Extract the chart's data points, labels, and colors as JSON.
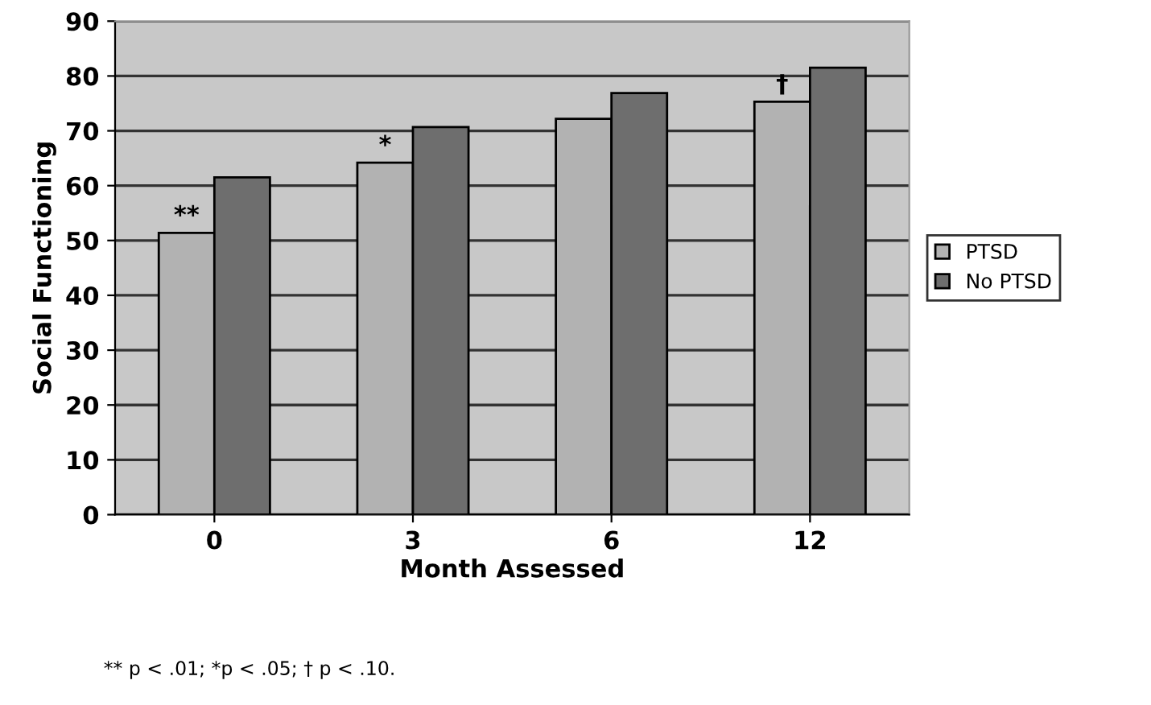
{
  "chart_data": {
    "type": "bar",
    "xlabel": "Month Assessed",
    "ylabel": "Social Functioning",
    "categories": [
      "0",
      "3",
      "6",
      "12"
    ],
    "series": [
      {
        "name": "PTSD",
        "color": "#b2b2b2",
        "values": [
          51.4,
          64.2,
          72.2,
          75.3
        ]
      },
      {
        "name": "No PTSD",
        "color": "#6e6e6e",
        "values": [
          61.5,
          70.7,
          76.9,
          81.5
        ]
      }
    ],
    "ylim": [
      0,
      90
    ],
    "yticks": [
      0,
      10,
      20,
      30,
      40,
      50,
      60,
      70,
      80,
      90
    ],
    "grid": "y",
    "legend": "right",
    "annotations": [
      {
        "text": "**",
        "x": "0",
        "y": 51.4
      },
      {
        "text": "*",
        "x": "3",
        "y": 64.2
      },
      {
        "text": "†",
        "x": "12",
        "y": 75.3
      },
      "** p < .01; *p < .05; † p < .10."
    ]
  }
}
